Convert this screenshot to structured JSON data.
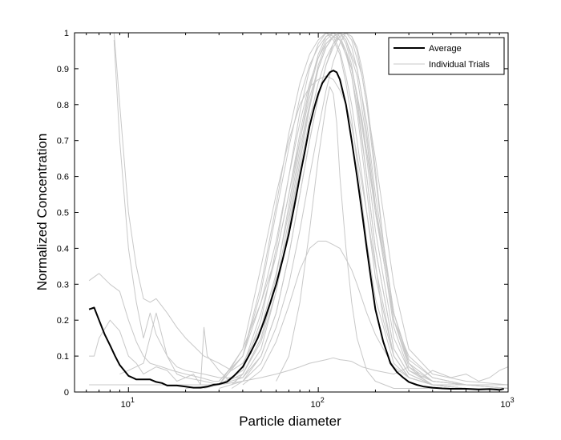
{
  "chart_data": {
    "type": "line",
    "title": "",
    "xlabel": "Particle diameter",
    "ylabel": "Normalized Concentration",
    "xscale": "log",
    "xlim": [
      5.2,
      1000
    ],
    "ylim": [
      0,
      1
    ],
    "x_ticks": [
      {
        "value": 10,
        "base": "10",
        "exp": "1"
      },
      {
        "value": 100,
        "base": "10",
        "exp": "2"
      },
      {
        "value": 1000,
        "base": "10",
        "exp": "3"
      }
    ],
    "y_ticks": [
      "0",
      "0.1",
      "0.2",
      "0.3",
      "0.4",
      "0.5",
      "0.6",
      "0.7",
      "0.8",
      "0.9",
      "1"
    ],
    "grid": false,
    "legend": {
      "position": "top-right",
      "entries": [
        {
          "label": "Average",
          "color": "#000000"
        },
        {
          "label": "Individual Trials",
          "color": "#c8c8c8"
        }
      ]
    },
    "series": [
      {
        "name": "Average",
        "color": "#000000",
        "style": "thick",
        "x": [
          6.2,
          6.6,
          7,
          7.5,
          8,
          8.5,
          9,
          9.5,
          10,
          10.5,
          11,
          12,
          13,
          14,
          15,
          16,
          18,
          20,
          22,
          24,
          26,
          28,
          30,
          33,
          36,
          40,
          44,
          48,
          52,
          56,
          60,
          65,
          70,
          75,
          80,
          85,
          90,
          95,
          100,
          105,
          110,
          115,
          120,
          125,
          130,
          140,
          150,
          160,
          170,
          180,
          190,
          200,
          220,
          240,
          260,
          280,
          300,
          330,
          360,
          400,
          450,
          500,
          600,
          700,
          800,
          900,
          950
        ],
        "y": [
          0.23,
          0.235,
          0.2,
          0.16,
          0.13,
          0.1,
          0.075,
          0.06,
          0.045,
          0.04,
          0.035,
          0.035,
          0.035,
          0.028,
          0.025,
          0.018,
          0.018,
          0.015,
          0.012,
          0.012,
          0.015,
          0.02,
          0.022,
          0.028,
          0.045,
          0.07,
          0.11,
          0.15,
          0.2,
          0.25,
          0.3,
          0.37,
          0.44,
          0.52,
          0.6,
          0.67,
          0.74,
          0.79,
          0.83,
          0.86,
          0.875,
          0.89,
          0.895,
          0.89,
          0.87,
          0.8,
          0.7,
          0.6,
          0.5,
          0.4,
          0.31,
          0.23,
          0.14,
          0.08,
          0.055,
          0.04,
          0.028,
          0.02,
          0.015,
          0.012,
          0.01,
          0.009,
          0.009,
          0.007,
          0.008,
          0.006,
          0.009
        ]
      },
      {
        "color": "#c8c8c8",
        "x": [
          6.2,
          7,
          8,
          9,
          10,
          11,
          12,
          13,
          15,
          17,
          20,
          24,
          28,
          30,
          35,
          40,
          50,
          60,
          70,
          80,
          90,
          100,
          110,
          120,
          130,
          140,
          160,
          180,
          200,
          250,
          300,
          400,
          600,
          1000
        ],
        "y": [
          0.31,
          0.33,
          0.3,
          0.28,
          0.2,
          0.14,
          0.1,
          0.08,
          0.07,
          0.06,
          0.05,
          0.04,
          0.03,
          0.03,
          0.07,
          0.12,
          0.25,
          0.38,
          0.55,
          0.7,
          0.82,
          0.9,
          0.96,
          0.99,
          1,
          0.98,
          0.88,
          0.7,
          0.5,
          0.2,
          0.08,
          0.03,
          0.02,
          0.02
        ]
      },
      {
        "color": "#c8c8c8",
        "x": [
          6.2,
          6.6,
          7,
          8,
          9,
          10,
          11,
          12,
          14,
          16,
          18,
          20,
          22,
          24,
          25,
          26,
          28,
          30,
          34,
          40,
          50,
          60,
          70,
          80,
          90,
          100,
          110,
          120,
          130,
          150,
          170,
          200,
          250,
          300,
          400,
          600,
          1000
        ],
        "y": [
          0.1,
          0.1,
          0.15,
          0.2,
          0.17,
          0.1,
          0.08,
          0.05,
          0.07,
          0.06,
          0.03,
          0.04,
          0.05,
          0.02,
          0.18,
          0.1,
          0.08,
          0.06,
          0.03,
          0.07,
          0.22,
          0.38,
          0.55,
          0.72,
          0.85,
          0.94,
          0.99,
          1,
          0.98,
          0.9,
          0.76,
          0.5,
          0.2,
          0.1,
          0.04,
          0.02,
          0.02
        ]
      },
      {
        "color": "#c8c8c8",
        "x": [
          8.4,
          9,
          10,
          11,
          12,
          13,
          14,
          16,
          18,
          20,
          25,
          30,
          35,
          40,
          50,
          60,
          70,
          80,
          90,
          100,
          110,
          120,
          130,
          140,
          160,
          180,
          200,
          250,
          300,
          400,
          600,
          1000
        ],
        "y": [
          1,
          0.8,
          0.5,
          0.35,
          0.26,
          0.25,
          0.26,
          0.22,
          0.18,
          0.15,
          0.1,
          0.08,
          0.06,
          0.08,
          0.18,
          0.33,
          0.5,
          0.68,
          0.8,
          0.9,
          0.96,
          0.99,
          1,
          0.98,
          0.9,
          0.75,
          0.55,
          0.22,
          0.09,
          0.04,
          0.02,
          0.02
        ]
      },
      {
        "color": "#c8c8c8",
        "x": [
          8.4,
          9,
          10,
          11,
          12,
          13,
          14,
          16,
          18,
          20,
          25,
          30,
          40,
          50,
          60,
          70,
          80,
          90,
          100,
          110,
          120,
          130,
          140,
          150,
          170,
          200,
          250,
          300,
          400,
          600,
          1000
        ],
        "y": [
          0.98,
          0.7,
          0.4,
          0.25,
          0.15,
          0.22,
          0.16,
          0.1,
          0.07,
          0.06,
          0.05,
          0.04,
          0.04,
          0.12,
          0.28,
          0.45,
          0.62,
          0.76,
          0.86,
          0.93,
          0.97,
          0.99,
          1,
          0.98,
          0.88,
          0.65,
          0.3,
          0.12,
          0.05,
          0.03,
          0.02
        ]
      },
      {
        "color": "#c8c8c8",
        "x": [
          9,
          10,
          12,
          14,
          16,
          18,
          20,
          25,
          30,
          40,
          50,
          60,
          70,
          80,
          90,
          100,
          110,
          120,
          130,
          140,
          150,
          170,
          200,
          250,
          300,
          400,
          600,
          1000
        ],
        "y": [
          0.05,
          0.06,
          0.08,
          0.22,
          0.1,
          0.05,
          0.04,
          0.03,
          0.02,
          0.05,
          0.15,
          0.3,
          0.48,
          0.66,
          0.8,
          0.91,
          0.97,
          0.99,
          0.98,
          0.95,
          0.9,
          0.75,
          0.52,
          0.22,
          0.08,
          0.03,
          0.02,
          0.01
        ]
      },
      {
        "color": "#c8c8c8",
        "x": [
          6.2,
          8,
          10,
          15,
          20,
          30,
          40,
          50,
          60,
          70,
          80,
          90,
          100,
          110,
          120,
          130,
          140,
          150,
          160,
          170,
          180,
          200,
          220,
          250,
          300,
          400,
          600,
          1000
        ],
        "y": [
          0.02,
          0.02,
          0.02,
          0.02,
          0.02,
          0.02,
          0.04,
          0.1,
          0.22,
          0.38,
          0.55,
          0.7,
          0.82,
          0.91,
          0.96,
          0.99,
          1,
          0.99,
          0.95,
          0.88,
          0.8,
          0.6,
          0.42,
          0.2,
          0.07,
          0.03,
          0.02,
          0.01
        ]
      },
      {
        "color": "#c8c8c8",
        "x": [
          30,
          40,
          50,
          60,
          70,
          80,
          90,
          100,
          110,
          120,
          130,
          140,
          150,
          160,
          170,
          180,
          200,
          220,
          250,
          300,
          350,
          400,
          600,
          1000
        ],
        "y": [
          0.01,
          0.03,
          0.08,
          0.18,
          0.3,
          0.45,
          0.6,
          0.73,
          0.84,
          0.92,
          0.97,
          1,
          0.99,
          0.96,
          0.9,
          0.82,
          0.62,
          0.42,
          0.22,
          0.08,
          0.04,
          0.02,
          0.02,
          0.01
        ]
      },
      {
        "color": "#c8c8c8",
        "x": [
          30,
          40,
          50,
          60,
          70,
          80,
          90,
          100,
          110,
          115,
          120,
          125,
          130,
          140,
          150,
          160,
          180,
          200,
          250,
          300,
          400,
          600,
          1000
        ],
        "y": [
          0.02,
          0.1,
          0.3,
          0.52,
          0.72,
          0.86,
          0.94,
          0.98,
          1,
          0.99,
          0.98,
          0.96,
          0.94,
          0.86,
          0.76,
          0.64,
          0.42,
          0.26,
          0.08,
          0.04,
          0.02,
          0.01,
          0.01
        ]
      },
      {
        "color": "#c8c8c8",
        "x": [
          35,
          40,
          50,
          60,
          70,
          80,
          90,
          100,
          110,
          120,
          130,
          140,
          150,
          160,
          180,
          200,
          220,
          250,
          300,
          400,
          600,
          1000
        ],
        "y": [
          0.02,
          0.05,
          0.15,
          0.32,
          0.52,
          0.7,
          0.84,
          0.93,
          0.98,
          1,
          0.99,
          0.95,
          0.88,
          0.78,
          0.56,
          0.36,
          0.2,
          0.1,
          0.04,
          0.02,
          0.01,
          0.01
        ]
      },
      {
        "color": "#c8c8c8",
        "x": [
          30,
          40,
          50,
          60,
          70,
          80,
          90,
          100,
          110,
          120,
          130,
          140,
          150,
          160,
          170,
          180,
          200,
          250,
          300,
          400,
          600,
          1000
        ],
        "y": [
          0.02,
          0.06,
          0.2,
          0.4,
          0.6,
          0.78,
          0.9,
          0.97,
          1,
          0.99,
          0.95,
          0.88,
          0.8,
          0.7,
          0.6,
          0.5,
          0.32,
          0.1,
          0.04,
          0.02,
          0.01,
          0.01
        ]
      },
      {
        "color": "#c8c8c8",
        "x": [
          35,
          40,
          50,
          60,
          70,
          80,
          90,
          100,
          110,
          120,
          130,
          140,
          150,
          160,
          170,
          180,
          190,
          200,
          250,
          300,
          400,
          600,
          1000
        ],
        "y": [
          0.01,
          0.03,
          0.1,
          0.22,
          0.38,
          0.55,
          0.7,
          0.82,
          0.91,
          0.97,
          1,
          0.99,
          0.96,
          0.9,
          0.82,
          0.72,
          0.62,
          0.52,
          0.18,
          0.06,
          0.02,
          0.01,
          0.01
        ]
      },
      {
        "color": "#c8c8c8",
        "x": [
          35,
          40,
          50,
          60,
          70,
          80,
          90,
          100,
          110,
          120,
          130,
          140,
          150,
          160,
          180,
          200,
          250,
          300,
          400,
          600,
          1000
        ],
        "y": [
          0.02,
          0.05,
          0.14,
          0.28,
          0.46,
          0.64,
          0.79,
          0.9,
          0.96,
          0.99,
          1,
          0.97,
          0.91,
          0.82,
          0.6,
          0.4,
          0.12,
          0.05,
          0.02,
          0.01,
          0.01
        ]
      },
      {
        "color": "#c8c8c8",
        "x": [
          20,
          30,
          40,
          50,
          60,
          70,
          80,
          90,
          100,
          110,
          120,
          130,
          140,
          150,
          160,
          180,
          200,
          250,
          300,
          400,
          600,
          1000
        ],
        "y": [
          0.01,
          0.02,
          0.12,
          0.35,
          0.55,
          0.7,
          0.8,
          0.85,
          0.87,
          0.88,
          0.87,
          0.84,
          0.8,
          0.74,
          0.66,
          0.5,
          0.35,
          0.1,
          0.04,
          0.02,
          0.01,
          0.01
        ]
      },
      {
        "color": "#c8c8c8",
        "x": [
          25,
          30,
          40,
          50,
          60,
          70,
          80,
          90,
          100,
          110,
          120,
          130,
          140,
          150,
          160,
          180,
          200,
          250,
          300,
          400,
          600,
          1000
        ],
        "y": [
          0.01,
          0.02,
          0.1,
          0.28,
          0.5,
          0.68,
          0.82,
          0.91,
          0.96,
          0.99,
          1,
          0.98,
          0.94,
          0.88,
          0.8,
          0.6,
          0.4,
          0.12,
          0.05,
          0.02,
          0.01,
          0.01
        ]
      },
      {
        "color": "#c8c8c8",
        "x": [
          30,
          40,
          50,
          60,
          70,
          80,
          90,
          100,
          110,
          120,
          130,
          140,
          150,
          160,
          170,
          180,
          200,
          250,
          300,
          400,
          600,
          1000
        ],
        "y": [
          0.03,
          0.1,
          0.25,
          0.42,
          0.6,
          0.75,
          0.86,
          0.93,
          0.97,
          0.99,
          0.98,
          0.95,
          0.9,
          0.83,
          0.74,
          0.65,
          0.45,
          0.15,
          0.06,
          0.03,
          0.02,
          0.01
        ]
      },
      {
        "color": "#c8c8c8",
        "x": [
          60,
          70,
          80,
          90,
          100,
          110,
          115,
          120,
          125,
          130,
          140,
          150,
          160,
          180,
          200,
          250,
          300,
          400,
          600,
          1000
        ],
        "y": [
          0.03,
          0.1,
          0.25,
          0.45,
          0.65,
          0.8,
          0.85,
          0.83,
          0.75,
          0.6,
          0.4,
          0.25,
          0.15,
          0.06,
          0.03,
          0.01,
          0.01,
          0.01,
          0.01,
          0.01
        ]
      },
      {
        "color": "#c8c8c8",
        "x": [
          40,
          50,
          60,
          70,
          80,
          90,
          100,
          110,
          120,
          130,
          140,
          150,
          160,
          180,
          200,
          220,
          250,
          300,
          400,
          600,
          1000
        ],
        "y": [
          0.02,
          0.06,
          0.14,
          0.24,
          0.34,
          0.4,
          0.42,
          0.42,
          0.41,
          0.4,
          0.37,
          0.34,
          0.3,
          0.22,
          0.16,
          0.12,
          0.07,
          0.04,
          0.02,
          0.01,
          0.01
        ]
      },
      {
        "color": "#c8c8c8",
        "x": [
          30,
          40,
          50,
          60,
          70,
          80,
          90,
          100,
          110,
          120,
          130,
          140,
          150,
          170,
          200,
          250,
          300,
          350,
          400,
          500,
          600,
          700,
          800,
          900,
          1000
        ],
        "y": [
          0.02,
          0.03,
          0.04,
          0.05,
          0.06,
          0.07,
          0.08,
          0.085,
          0.09,
          0.095,
          0.09,
          0.088,
          0.085,
          0.07,
          0.06,
          0.05,
          0.07,
          0.04,
          0.06,
          0.04,
          0.05,
          0.03,
          0.04,
          0.06,
          0.07
        ]
      }
    ]
  }
}
